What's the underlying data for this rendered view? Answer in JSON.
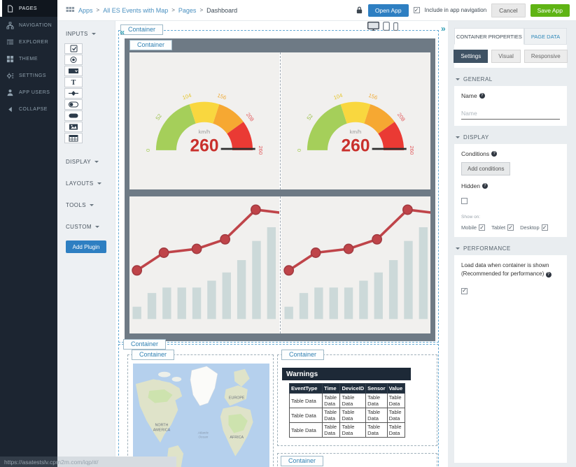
{
  "topbar": {
    "breadcrumb": {
      "icon": "apps-grid-icon",
      "items": [
        "Apps",
        "All ES Events with Map",
        "Pages",
        "Dashboard"
      ],
      "separator": ">"
    },
    "lock_icon": "lock-icon",
    "open_app_button": "Open App",
    "include_checkbox_label": "Include in app navigation",
    "cancel_button": "Cancel",
    "save_button": "Save App"
  },
  "sidebar": {
    "items": [
      {
        "label": "PAGES",
        "icon": "pages-icon",
        "active": true
      },
      {
        "label": "NAVIGATION",
        "icon": "navigation-icon",
        "active": false
      },
      {
        "label": "EXPLORER",
        "icon": "explorer-icon",
        "active": false
      },
      {
        "label": "THEME",
        "icon": "theme-icon",
        "active": false
      },
      {
        "label": "SETTINGS",
        "icon": "settings-icon",
        "active": false
      },
      {
        "label": "APP USERS",
        "icon": "app-users-icon",
        "active": false
      },
      {
        "label": "COLLAPSE",
        "icon": "collapse-icon",
        "active": false
      }
    ]
  },
  "toolbox": {
    "collapse_arrow": "«",
    "sections": [
      {
        "label": "INPUTS"
      },
      {
        "label": "DISPLAY"
      },
      {
        "label": "LAYOUTS"
      },
      {
        "label": "TOOLS"
      },
      {
        "label": "CUSTOM"
      }
    ],
    "input_icons": [
      "checkbox-input-icon",
      "radio-input-icon",
      "select-input-icon",
      "text-input-icon",
      "slider-input-icon",
      "toggle-input-icon",
      "button-input-icon",
      "image-input-icon",
      "table-input-icon"
    ],
    "add_plugin_button": "Add Plugin"
  },
  "canvas": {
    "expand_arrow": "»",
    "container_label": "Container",
    "device_icons": [
      "desktop-preview-icon",
      "tablet-preview-icon",
      "mobile-preview-icon"
    ]
  },
  "map": {
    "labels": {
      "na1": "NORTH",
      "na2": "AMERICA",
      "europe": "EUROPE",
      "africa": "AFRICA",
      "ocean1": "Atlantic",
      "ocean2": "Ocean"
    }
  },
  "chart_data": [
    {
      "type": "gauge",
      "unit": "km/h",
      "value": 260,
      "min": 0,
      "max": 260,
      "value_color": "#c9302c",
      "needle_color": "#2f2f2f",
      "ticks": [
        {
          "value": 0,
          "color": "#a4cd55"
        },
        {
          "value": 52,
          "color": "#9cc14b"
        },
        {
          "value": 104,
          "color": "#e5c52e"
        },
        {
          "value": 156,
          "color": "#efab38"
        },
        {
          "value": 208,
          "color": "#e2595c"
        },
        {
          "value": 260,
          "color": "#e2595c"
        }
      ],
      "segments": [
        {
          "from": 0,
          "to": 104,
          "color": "#a5cf5a"
        },
        {
          "from": 104,
          "to": 156,
          "color": "#f9d73f"
        },
        {
          "from": 156,
          "to": 208,
          "color": "#f6a832"
        },
        {
          "from": 208,
          "to": 260,
          "color": "#ea3a34"
        }
      ],
      "instances": 2
    },
    {
      "type": "combo",
      "bar_color": "#ccd9d9",
      "line_color": "#bf4449",
      "marker_stroke": "#a23a40",
      "bar_values": [
        0.09,
        0.19,
        0.23,
        0.23,
        0.23,
        0.28,
        0.34,
        0.43,
        0.57,
        0.67
      ],
      "line_points": [
        {
          "x": 0.05,
          "v": 0.355,
          "marker": true
        },
        {
          "x": 0.23,
          "v": 0.484,
          "marker": true
        },
        {
          "x": 0.45,
          "v": 0.512,
          "marker": true
        },
        {
          "x": 0.64,
          "v": 0.582,
          "marker": true
        },
        {
          "x": 0.845,
          "v": 0.798,
          "marker": true
        },
        {
          "x": 1.02,
          "v": 0.775,
          "marker": false
        }
      ],
      "instances": 2
    },
    {
      "type": "table",
      "title": "Warnings",
      "headers": [
        "EventType",
        "Time",
        "DeviceID",
        "Sensor",
        "Value"
      ],
      "rows": [
        [
          "Table Data",
          "Table Data",
          "Table Data",
          "Table Data",
          "Table Data"
        ],
        [
          "Table Data",
          "Table Data",
          "Table Data",
          "Table Data",
          "Table Data"
        ],
        [
          "Table Data",
          "Table Data",
          "Table Data",
          "Table Data",
          "Table Data"
        ]
      ]
    }
  ],
  "right_panel": {
    "tabs": [
      {
        "label": "CONTAINER PROPERTIES",
        "active": true
      },
      {
        "label": "PAGE DATA",
        "active": false
      }
    ],
    "modes": [
      {
        "label": "Settings",
        "active": true
      },
      {
        "label": "Visual",
        "active": false
      },
      {
        "label": "Responsive",
        "active": false
      }
    ],
    "general": {
      "title": "GENERAL",
      "name_label": "Name",
      "name_placeholder": "Name"
    },
    "display": {
      "title": "DISPLAY",
      "conditions_label": "Conditions",
      "add_conditions_button": "Add conditions",
      "hidden_label": "Hidden",
      "hidden_checked": false,
      "show_on_label": "Show on:",
      "devices": [
        {
          "label": "Mobile",
          "checked": true
        },
        {
          "label": "Tablet",
          "checked": true
        },
        {
          "label": "Desktop",
          "checked": true
        }
      ]
    },
    "performance": {
      "title": "PERFORMANCE",
      "description": "Load data when container is shown (Recommended for performance)",
      "checked": true
    }
  },
  "statusbar": {
    "url": "https://asatestslv.cpm2m.com/iqp/#/"
  }
}
